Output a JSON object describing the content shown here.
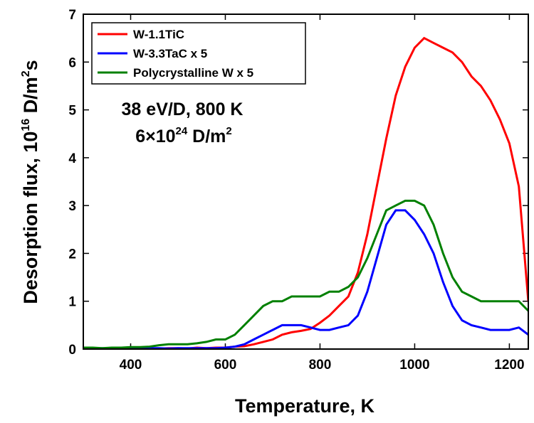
{
  "chart_data": {
    "type": "line",
    "x_label": "Temperature, K",
    "y_label": [
      "Desorption flux, 10",
      "16",
      " D/m",
      "2",
      "s"
    ],
    "annotations": [
      [
        "38 eV/D, 800 K"
      ],
      [
        "6×10",
        "24",
        " D/m",
        "2"
      ]
    ],
    "x": [
      300,
      320,
      340,
      360,
      380,
      400,
      420,
      440,
      460,
      480,
      500,
      520,
      540,
      560,
      580,
      600,
      620,
      640,
      660,
      680,
      700,
      720,
      740,
      760,
      780,
      800,
      820,
      840,
      860,
      880,
      900,
      920,
      940,
      960,
      980,
      1000,
      1020,
      1040,
      1060,
      1080,
      1100,
      1120,
      1140,
      1160,
      1180,
      1200,
      1220,
      1240
    ],
    "series": [
      {
        "name": "W-1.1TiC",
        "color": "#ff0000",
        "values": [
          0.02,
          0.01,
          0,
          0.01,
          0,
          0.01,
          0,
          0.02,
          0.01,
          0.02,
          0.02,
          0.01,
          0.03,
          0.02,
          0.03,
          0.03,
          0.05,
          0.06,
          0.1,
          0.15,
          0.2,
          0.3,
          0.35,
          0.38,
          0.42,
          0.55,
          0.7,
          0.9,
          1.1,
          1.6,
          2.4,
          3.4,
          4.4,
          5.3,
          5.9,
          6.3,
          6.5,
          6.4,
          6.3,
          6.2,
          6.0,
          5.7,
          5.5,
          5.2,
          4.8,
          4.3,
          3.4,
          1.0
        ]
      },
      {
        "name": "W-3.3TaC x 5",
        "color": "#0000ff",
        "values": [
          0.02,
          0.01,
          0.02,
          0.01,
          0.02,
          0.02,
          0.01,
          0.02,
          0.02,
          0.01,
          0.02,
          0.02,
          0.02,
          0.02,
          0.02,
          0.03,
          0.05,
          0.1,
          0.2,
          0.3,
          0.4,
          0.5,
          0.5,
          0.5,
          0.45,
          0.4,
          0.4,
          0.45,
          0.5,
          0.7,
          1.2,
          1.9,
          2.6,
          2.9,
          2.9,
          2.7,
          2.4,
          2.0,
          1.4,
          0.9,
          0.6,
          0.5,
          0.45,
          0.4,
          0.4,
          0.4,
          0.45,
          0.3
        ]
      },
      {
        "name": "Polycrystalline W x 5",
        "color": "#008000",
        "values": [
          0.03,
          0.03,
          0.02,
          0.03,
          0.03,
          0.04,
          0.04,
          0.05,
          0.08,
          0.1,
          0.1,
          0.1,
          0.12,
          0.15,
          0.2,
          0.2,
          0.3,
          0.5,
          0.7,
          0.9,
          1.0,
          1.0,
          1.1,
          1.1,
          1.1,
          1.1,
          1.2,
          1.2,
          1.3,
          1.5,
          1.9,
          2.4,
          2.9,
          3.0,
          3.1,
          3.1,
          3.0,
          2.6,
          2.0,
          1.5,
          1.2,
          1.1,
          1.0,
          1.0,
          1.0,
          1.0,
          1.0,
          0.8
        ]
      }
    ],
    "xlim": [
      300,
      1240
    ],
    "xticks": [
      400,
      600,
      800,
      1000,
      1200
    ],
    "ylim": [
      0,
      7
    ],
    "yticks": [
      0,
      1,
      2,
      3,
      4,
      5,
      6,
      7
    ],
    "legend": "upper left"
  }
}
